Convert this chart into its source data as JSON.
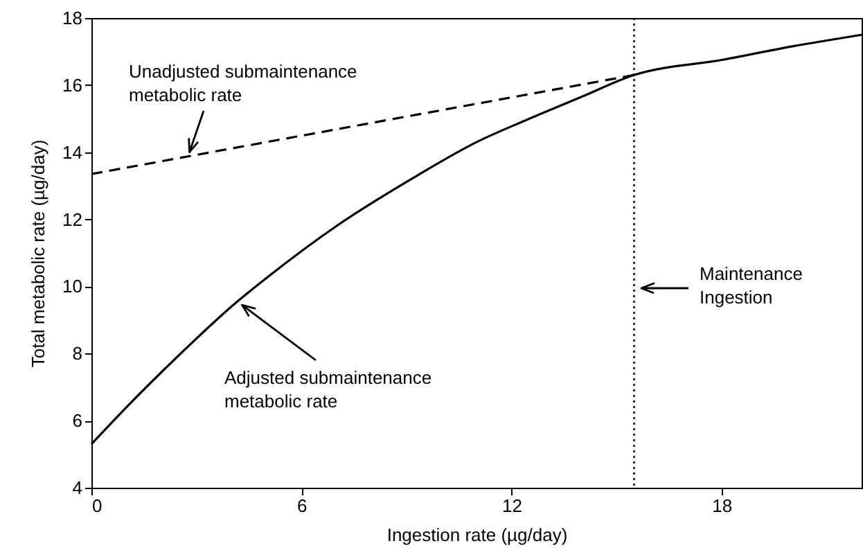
{
  "chart_data": {
    "type": "line",
    "xlabel": "Ingestion rate (µg/day)",
    "ylabel": "Total metabolic rate (µg/day)",
    "xlim": [
      0,
      22
    ],
    "xticks": [
      0,
      6,
      12,
      18
    ],
    "ylim": [
      4,
      18
    ],
    "yticks": [
      4,
      6,
      8,
      10,
      12,
      14,
      16,
      18
    ],
    "grid": false,
    "marker": "none",
    "series": [
      {
        "color": "#000000",
        "line_style": "solid",
        "x": [
          0,
          1,
          2.65,
          4,
          5,
          7,
          9.3,
          11,
          12.4,
          14,
          15.5,
          18,
          20,
          22
        ],
        "values": [
          5.3,
          6.4,
          8.1,
          9.4,
          10.25,
          11.8,
          13.3,
          14.3,
          14.95,
          15.65,
          16.3,
          16.75,
          17.15,
          17.5
        ]
      },
      {
        "color": "#000000",
        "line_style": "dashed",
        "x": [
          0,
          15.5
        ],
        "values": [
          13.35,
          16.3
        ]
      }
    ],
    "ref_lines": [
      {
        "axis": "x",
        "value": 15.5,
        "color": "#000000",
        "line_style": "dotted"
      }
    ],
    "annotations": [
      {
        "text": "Unadjusted submaintenance metabolic rate",
        "x": 2.8,
        "y": 14.0
      },
      {
        "text": "Adjusted submaintenance metabolic rate",
        "x": 4.3,
        "y": 9.45
      },
      "Maintenance Ingestion"
    ]
  }
}
